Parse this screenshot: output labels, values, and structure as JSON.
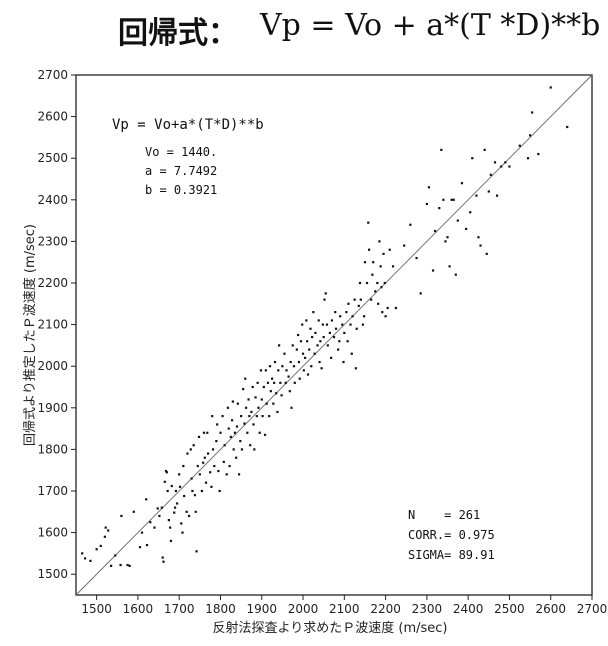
{
  "header": {
    "title_prefix": "回帰式：",
    "title_formula": "Vp = Vo + a*(T *D)**b"
  },
  "chart_data": {
    "type": "scatter",
    "xlabel": "反射法探査より求めたＰ波速度 (m/sec)",
    "ylabel": "回帰式より推定したＰ波速度 (m/sec)",
    "xlim": [
      1450,
      2700
    ],
    "ylim": [
      1450,
      2700
    ],
    "xticks": [
      1500,
      1600,
      1700,
      1800,
      1900,
      2000,
      2100,
      2200,
      2300,
      2400,
      2500,
      2600,
      2700
    ],
    "yticks": [
      1500,
      1600,
      1700,
      1800,
      1900,
      2000,
      2100,
      2200,
      2300,
      2400,
      2500,
      2600,
      2700
    ],
    "reference_line": {
      "type": "y=x",
      "from": 1450,
      "to": 2700
    },
    "annotations": {
      "formula": "Vp = Vo+a*(T*D)**b",
      "params": [
        "Vo = 1440.",
        "a = 7.7492",
        "b = 0.3921"
      ],
      "stats": [
        "N    = 261",
        "CORR.= 0.975",
        "SIGMA= 89.91"
      ]
    },
    "grid": false,
    "points": [
      [
        1465,
        1550
      ],
      [
        1472,
        1538
      ],
      [
        1485,
        1532
      ],
      [
        1500,
        1560
      ],
      [
        1510,
        1568
      ],
      [
        1520,
        1590
      ],
      [
        1522,
        1612
      ],
      [
        1528,
        1605
      ],
      [
        1535,
        1520
      ],
      [
        1545,
        1545
      ],
      [
        1558,
        1522
      ],
      [
        1560,
        1640
      ],
      [
        1575,
        1522
      ],
      [
        1580,
        1520
      ],
      [
        1590,
        1650
      ],
      [
        1605,
        1565
      ],
      [
        1610,
        1600
      ],
      [
        1620,
        1680
      ],
      [
        1622,
        1570
      ],
      [
        1630,
        1625
      ],
      [
        1640,
        1612
      ],
      [
        1648,
        1658
      ],
      [
        1652,
        1640
      ],
      [
        1658,
        1660
      ],
      [
        1660,
        1540
      ],
      [
        1662,
        1530
      ],
      [
        1665,
        1722
      ],
      [
        1668,
        1748
      ],
      [
        1670,
        1745
      ],
      [
        1672,
        1700
      ],
      [
        1675,
        1630
      ],
      [
        1678,
        1612
      ],
      [
        1680,
        1580
      ],
      [
        1682,
        1712
      ],
      [
        1688,
        1648
      ],
      [
        1690,
        1660
      ],
      [
        1692,
        1700
      ],
      [
        1695,
        1670
      ],
      [
        1700,
        1740
      ],
      [
        1702,
        1710
      ],
      [
        1705,
        1622
      ],
      [
        1708,
        1600
      ],
      [
        1710,
        1760
      ],
      [
        1712,
        1688
      ],
      [
        1718,
        1650
      ],
      [
        1720,
        1790
      ],
      [
        1724,
        1640
      ],
      [
        1728,
        1800
      ],
      [
        1730,
        1730
      ],
      [
        1732,
        1700
      ],
      [
        1735,
        1810
      ],
      [
        1738,
        1690
      ],
      [
        1740,
        1650
      ],
      [
        1742,
        1555
      ],
      [
        1745,
        1760
      ],
      [
        1748,
        1830
      ],
      [
        1750,
        1740
      ],
      [
        1755,
        1700
      ],
      [
        1758,
        1768
      ],
      [
        1760,
        1840
      ],
      [
        1762,
        1780
      ],
      [
        1765,
        1720
      ],
      [
        1768,
        1840
      ],
      [
        1770,
        1790
      ],
      [
        1775,
        1745
      ],
      [
        1778,
        1710
      ],
      [
        1780,
        1880
      ],
      [
        1782,
        1800
      ],
      [
        1785,
        1760
      ],
      [
        1790,
        1820
      ],
      [
        1792,
        1860
      ],
      [
        1795,
        1748
      ],
      [
        1798,
        1700
      ],
      [
        1800,
        1840
      ],
      [
        1805,
        1880
      ],
      [
        1808,
        1770
      ],
      [
        1810,
        1810
      ],
      [
        1815,
        1740
      ],
      [
        1818,
        1900
      ],
      [
        1820,
        1850
      ],
      [
        1822,
        1760
      ],
      [
        1825,
        1830
      ],
      [
        1828,
        1870
      ],
      [
        1830,
        1915
      ],
      [
        1832,
        1800
      ],
      [
        1835,
        1840
      ],
      [
        1838,
        1780
      ],
      [
        1840,
        1855
      ],
      [
        1842,
        1910
      ],
      [
        1845,
        1740
      ],
      [
        1848,
        1820
      ],
      [
        1850,
        1880
      ],
      [
        1852,
        1800
      ],
      [
        1855,
        1945
      ],
      [
        1858,
        1862
      ],
      [
        1860,
        1970
      ],
      [
        1862,
        1900
      ],
      [
        1865,
        1840
      ],
      [
        1868,
        1920
      ],
      [
        1870,
        1880
      ],
      [
        1872,
        1810
      ],
      [
        1875,
        1890
      ],
      [
        1878,
        1950
      ],
      [
        1880,
        1860
      ],
      [
        1882,
        1800
      ],
      [
        1885,
        1925
      ],
      [
        1888,
        1880
      ],
      [
        1890,
        1960
      ],
      [
        1892,
        1900
      ],
      [
        1895,
        1840
      ],
      [
        1898,
        1990
      ],
      [
        1900,
        1920
      ],
      [
        1902,
        1880
      ],
      [
        1905,
        1950
      ],
      [
        1908,
        1835
      ],
      [
        1910,
        1990
      ],
      [
        1912,
        1910
      ],
      [
        1915,
        1960
      ],
      [
        1918,
        1880
      ],
      [
        1920,
        2000
      ],
      [
        1922,
        1940
      ],
      [
        1925,
        1970
      ],
      [
        1928,
        1910
      ],
      [
        1930,
        1960
      ],
      [
        1932,
        2010
      ],
      [
        1935,
        1935
      ],
      [
        1938,
        1890
      ],
      [
        1940,
        1990
      ],
      [
        1942,
        2050
      ],
      [
        1945,
        1960
      ],
      [
        1948,
        1930
      ],
      [
        1950,
        2000
      ],
      [
        1955,
        2030
      ],
      [
        1958,
        1960
      ],
      [
        1960,
        1990
      ],
      [
        1965,
        1975
      ],
      [
        1968,
        1940
      ],
      [
        1970,
        2010
      ],
      [
        1972,
        1900
      ],
      [
        1975,
        2050
      ],
      [
        1978,
        2000
      ],
      [
        1980,
        1960
      ],
      [
        1985,
        2040
      ],
      [
        1988,
        2075
      ],
      [
        1990,
        2010
      ],
      [
        1992,
        1970
      ],
      [
        1995,
        2060
      ],
      [
        1998,
        2100
      ],
      [
        2000,
        2030
      ],
      [
        2002,
        1990
      ],
      [
        2005,
        2020
      ],
      [
        2008,
        2110
      ],
      [
        2010,
        2060
      ],
      [
        2012,
        1980
      ],
      [
        2015,
        2040
      ],
      [
        2018,
        2090
      ],
      [
        2020,
        2000
      ],
      [
        2022,
        2070
      ],
      [
        2025,
        2130
      ],
      [
        2028,
        2030
      ],
      [
        2030,
        2080
      ],
      [
        2035,
        2050
      ],
      [
        2038,
        2110
      ],
      [
        2040,
        2010
      ],
      [
        2042,
        2060
      ],
      [
        2045,
        1995
      ],
      [
        2048,
        2100
      ],
      [
        2050,
        2070
      ],
      [
        2052,
        2160
      ],
      [
        2055,
        2175
      ],
      [
        2058,
        2100
      ],
      [
        2060,
        2050
      ],
      [
        2065,
        2080
      ],
      [
        2068,
        2020
      ],
      [
        2070,
        2110
      ],
      [
        2075,
        2070
      ],
      [
        2078,
        2130
      ],
      [
        2080,
        2090
      ],
      [
        2085,
        2040
      ],
      [
        2088,
        2060
      ],
      [
        2090,
        2120
      ],
      [
        2095,
        2100
      ],
      [
        2098,
        2010
      ],
      [
        2100,
        2080
      ],
      [
        2105,
        2130
      ],
      [
        2108,
        2060
      ],
      [
        2110,
        2150
      ],
      [
        2115,
        2100
      ],
      [
        2118,
        2030
      ],
      [
        2120,
        2120
      ],
      [
        2125,
        2160
      ],
      [
        2128,
        1995
      ],
      [
        2130,
        2090
      ],
      [
        2135,
        2145
      ],
      [
        2138,
        2200
      ],
      [
        2140,
        2160
      ],
      [
        2145,
        2100
      ],
      [
        2148,
        2120
      ],
      [
        2150,
        2250
      ],
      [
        2155,
        2200
      ],
      [
        2158,
        2345
      ],
      [
        2160,
        2280
      ],
      [
        2165,
        2160
      ],
      [
        2168,
        2220
      ],
      [
        2170,
        2250
      ],
      [
        2175,
        2180
      ],
      [
        2180,
        2200
      ],
      [
        2182,
        2150
      ],
      [
        2185,
        2300
      ],
      [
        2188,
        2240
      ],
      [
        2190,
        2190
      ],
      [
        2192,
        2130
      ],
      [
        2195,
        2270
      ],
      [
        2198,
        2200
      ],
      [
        2200,
        2120
      ],
      [
        2205,
        2140
      ],
      [
        2210,
        2280
      ],
      [
        2218,
        2240
      ],
      [
        2225,
        2140
      ],
      [
        2245,
        2290
      ],
      [
        2260,
        2340
      ],
      [
        2275,
        2260
      ],
      [
        2285,
        2175
      ],
      [
        2300,
        2390
      ],
      [
        2305,
        2430
      ],
      [
        2315,
        2230
      ],
      [
        2320,
        2325
      ],
      [
        2330,
        2380
      ],
      [
        2335,
        2520
      ],
      [
        2340,
        2400
      ],
      [
        2345,
        2300
      ],
      [
        2350,
        2310
      ],
      [
        2355,
        2240
      ],
      [
        2360,
        2400
      ],
      [
        2365,
        2400
      ],
      [
        2370,
        2220
      ],
      [
        2375,
        2350
      ],
      [
        2385,
        2440
      ],
      [
        2395,
        2330
      ],
      [
        2405,
        2370
      ],
      [
        2410,
        2500
      ],
      [
        2420,
        2410
      ],
      [
        2425,
        2310
      ],
      [
        2430,
        2290
      ],
      [
        2440,
        2520
      ],
      [
        2445,
        2270
      ],
      [
        2450,
        2420
      ],
      [
        2455,
        2460
      ],
      [
        2465,
        2490
      ],
      [
        2470,
        2410
      ],
      [
        2480,
        2480
      ],
      [
        2490,
        2490
      ],
      [
        2500,
        2480
      ],
      [
        2525,
        2530
      ],
      [
        2545,
        2500
      ],
      [
        2550,
        2555
      ],
      [
        2555,
        2610
      ],
      [
        2570,
        2510
      ],
      [
        2600,
        2670
      ],
      [
        2640,
        2575
      ]
    ]
  }
}
